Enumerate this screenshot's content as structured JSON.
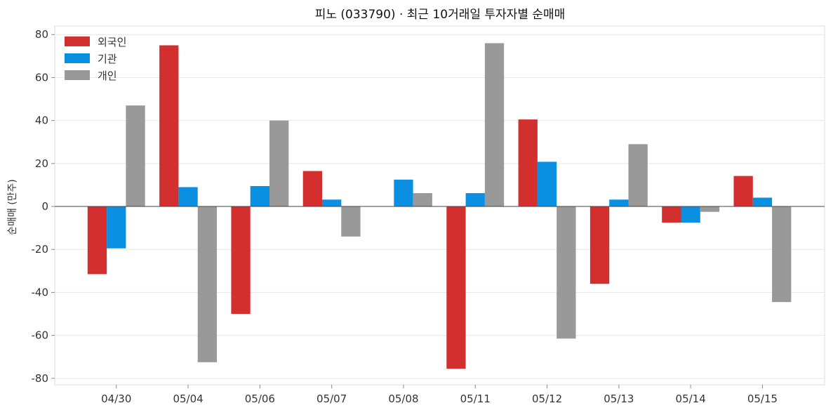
{
  "chart_data": {
    "type": "bar",
    "title": "피노 (033790) · 최근 10거래일 투자자별 순매매",
    "xlabel": "",
    "ylabel": "순매매 (만주)",
    "categories": [
      "04/30",
      "05/04",
      "05/06",
      "05/07",
      "05/08",
      "05/11",
      "05/12",
      "05/13",
      "05/14",
      "05/15"
    ],
    "series": [
      {
        "name": "외국인",
        "color": "#d32f2f",
        "values": [
          -31.5,
          75,
          -50,
          16.5,
          0,
          -75.5,
          40.5,
          -36,
          -7.5,
          14.2
        ]
      },
      {
        "name": "기관",
        "color": "#0b8fe0",
        "values": [
          -19.5,
          9,
          9.5,
          3.2,
          12.5,
          6.2,
          20.8,
          3.2,
          -7.5,
          4.1
        ]
      },
      {
        "name": "개인",
        "color": "#999999",
        "values": [
          47,
          -72.5,
          40,
          -14,
          6.2,
          76,
          -61.5,
          29,
          -2.5,
          -44.5
        ]
      }
    ],
    "ylim": [
      -83,
      84
    ],
    "yticks": [
      -80,
      -60,
      -40,
      -20,
      0,
      20,
      40,
      60,
      80
    ],
    "grid": true,
    "legend_position": "top-left"
  }
}
